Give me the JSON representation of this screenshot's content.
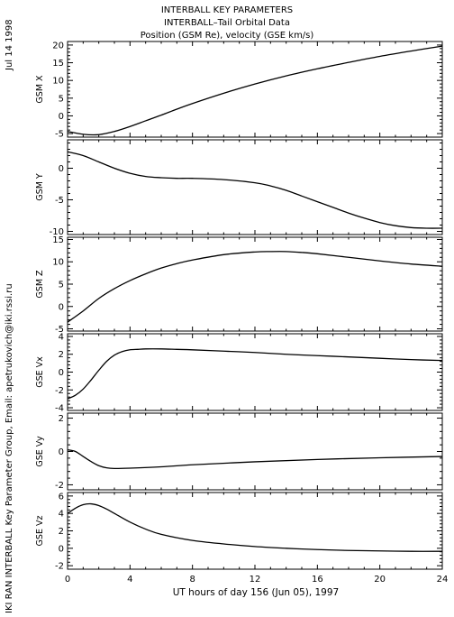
{
  "header": {
    "date": "Jul 14 1998",
    "title_lines": [
      "INTERBALL KEY PARAMETERS",
      "INTERBALL–Tail Orbital Data",
      "Position (GSM Re), velocity (GSE km/s)"
    ]
  },
  "footer": {
    "credit": "IKI RAN INTERBALL Key Parameter Group, Email: apetrukovich@iki.rssi.ru"
  },
  "chart_data": {
    "type": "line",
    "title": "INTERBALL KEY PARAMETERS / INTERBALL–Tail Orbital Data / Position (GSM Re), velocity (GSE km/s)",
    "xlabel": "UT hours of day 156 (Jun 05), 1997",
    "xlim": [
      0,
      24
    ],
    "xticks": [
      0,
      4,
      8,
      12,
      16,
      20,
      24
    ],
    "grid": false,
    "panels": [
      {
        "ylabel": "GSM X",
        "ylim": [
          -6,
          21
        ],
        "yticks": [
          -5,
          0,
          5,
          10,
          15,
          20
        ],
        "x": [
          0,
          1,
          2,
          3,
          4,
          5,
          6,
          7,
          8,
          10,
          12,
          14,
          16,
          18,
          20,
          22,
          24
        ],
        "y": [
          -4.4,
          -5.2,
          -5.3,
          -4.4,
          -3.0,
          -1.4,
          0.2,
          1.9,
          3.5,
          6.4,
          9.0,
          11.3,
          13.3,
          15.1,
          16.8,
          18.3,
          19.7
        ]
      },
      {
        "ylabel": "GSM Y",
        "ylim": [
          -10.5,
          4.5
        ],
        "yticks": [
          -10,
          -5,
          0
        ],
        "x": [
          0,
          1,
          2,
          3,
          4,
          5,
          6,
          7,
          8,
          10,
          12,
          13,
          14,
          15,
          16,
          17,
          18,
          19,
          20,
          21,
          22,
          23,
          24
        ],
        "y": [
          2.6,
          2.0,
          1.0,
          0.0,
          -0.8,
          -1.3,
          -1.5,
          -1.6,
          -1.6,
          -1.8,
          -2.3,
          -2.8,
          -3.5,
          -4.4,
          -5.3,
          -6.2,
          -7.1,
          -7.9,
          -8.6,
          -9.1,
          -9.4,
          -9.5,
          -9.5
        ]
      },
      {
        "ylabel": "GSM Z",
        "ylim": [
          -5.5,
          15.5
        ],
        "yticks": [
          -5,
          0,
          5,
          10,
          15
        ],
        "x": [
          0,
          1,
          2,
          3,
          4,
          5,
          6,
          7,
          8,
          10,
          12,
          13,
          14,
          15,
          16,
          18,
          20,
          22,
          24
        ],
        "y": [
          -3.5,
          -1.0,
          1.8,
          4.0,
          5.8,
          7.3,
          8.6,
          9.6,
          10.4,
          11.6,
          12.2,
          12.3,
          12.3,
          12.1,
          11.8,
          11.0,
          10.2,
          9.5,
          9.0
        ]
      },
      {
        "ylabel": "GSE Vx",
        "ylim": [
          -4.3,
          4.3
        ],
        "yticks": [
          -4,
          -2,
          0,
          2,
          4
        ],
        "x": [
          0,
          0.5,
          1,
          1.5,
          2,
          2.5,
          3,
          3.5,
          4,
          4.5,
          5,
          6,
          7,
          8,
          10,
          12,
          14,
          16,
          18,
          20,
          22,
          24
        ],
        "y": [
          -3.0,
          -2.6,
          -1.9,
          -0.9,
          0.2,
          1.2,
          1.9,
          2.3,
          2.5,
          2.55,
          2.6,
          2.6,
          2.55,
          2.5,
          2.35,
          2.2,
          2.0,
          1.85,
          1.7,
          1.55,
          1.4,
          1.3
        ]
      },
      {
        "ylabel": "GSE Vy",
        "ylim": [
          -2.3,
          2.3
        ],
        "yticks": [
          -2,
          0,
          2
        ],
        "x": [
          0,
          0.5,
          1,
          1.5,
          2,
          2.5,
          3,
          4,
          6,
          8,
          12,
          16,
          20,
          24
        ],
        "y": [
          0.1,
          0.0,
          -0.3,
          -0.6,
          -0.85,
          -0.98,
          -1.02,
          -1.0,
          -0.92,
          -0.8,
          -0.62,
          -0.48,
          -0.38,
          -0.3
        ]
      },
      {
        "ylabel": "GSE Vz",
        "ylim": [
          -2.4,
          6.4
        ],
        "yticks": [
          -2,
          0,
          2,
          4,
          6
        ],
        "x": [
          0,
          0.5,
          1,
          1.5,
          2,
          2.5,
          3,
          4,
          5,
          6,
          8,
          10,
          12,
          14,
          16,
          18,
          20,
          22,
          24
        ],
        "y": [
          4.0,
          4.6,
          5.0,
          5.1,
          4.9,
          4.5,
          4.0,
          3.0,
          2.2,
          1.6,
          0.9,
          0.5,
          0.2,
          0.0,
          -0.15,
          -0.25,
          -0.3,
          -0.35,
          -0.35
        ]
      }
    ]
  }
}
